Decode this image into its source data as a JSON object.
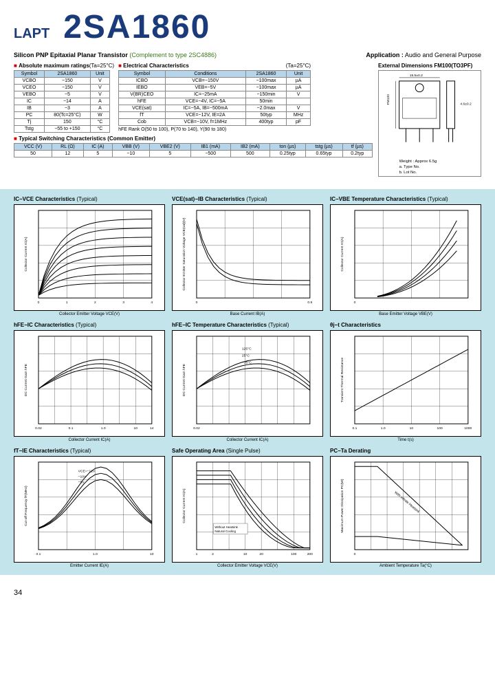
{
  "header": {
    "lapt": "LAPT",
    "part_number": "2SA1860"
  },
  "subtitle": {
    "main": "Silicon PNP Epitaxial Planar Transistor",
    "complement": "(Complement to type 2SC4886)",
    "app_label": "Application :",
    "app_text": "Audio and General Purpose"
  },
  "abs_ratings": {
    "title": "Absolute maximum ratings",
    "cond": "(Ta=25°C)",
    "headers": [
      "Symbol",
      "2SA1860",
      "Unit"
    ],
    "rows": [
      [
        "VCBO",
        "−150",
        "V"
      ],
      [
        "VCEO",
        "−150",
        "V"
      ],
      [
        "VEBO",
        "−5",
        "V"
      ],
      [
        "IC",
        "−14",
        "A"
      ],
      [
        "IB",
        "−3",
        "A"
      ],
      [
        "PC",
        "80(Tc=25°C)",
        "W"
      ],
      [
        "Tj",
        "150",
        "°C"
      ],
      [
        "Tstg",
        "−55 to +150",
        "°C"
      ]
    ]
  },
  "elec_char": {
    "title": "Electrical Characteristics",
    "cond": "(Ta=25°C)",
    "headers": [
      "Symbol",
      "Conditions",
      "2SA1860",
      "Unit"
    ],
    "rows": [
      [
        "ICBO",
        "VCB=−150V",
        "−100max",
        "µA"
      ],
      [
        "IEBO",
        "VEB=−5V",
        "−100max",
        "µA"
      ],
      [
        "V(BR)CEO",
        "IC=−25mA",
        "−150min",
        "V"
      ],
      [
        "hFE",
        "VCE=−4V, IC=−5A",
        "50min",
        ""
      ],
      [
        "VCE(sat)",
        "IC=−5A, IB=−500mA",
        "−2.0max",
        "V"
      ],
      [
        "fT",
        "VCE=−12V, IE=2A",
        "50typ",
        "MHz"
      ],
      [
        "Cob",
        "VCB=−10V, f=1MHz",
        "400typ",
        "pF"
      ]
    ],
    "hfe_note": "hFE Rank   O(50 to 100), P(70 to 140), Y(90 to 180)"
  },
  "switching": {
    "title": "Typical Switching Characteristics (Common Emitter)",
    "headers": [
      "VCC (V)",
      "RL (Ω)",
      "IC (A)",
      "VBB (V)",
      "VBE2 (V)",
      "IB1 (mA)",
      "IB2 (mA)",
      "ton (µs)",
      "tstg (µs)",
      "tf (µs)"
    ],
    "rows": [
      [
        "50",
        "12",
        "5",
        "−10",
        "5",
        "−500",
        "500",
        "0.25typ",
        "0.65typ",
        "0.2typ"
      ]
    ]
  },
  "dimensions": {
    "title": "External Dimensions",
    "package": "FM100(TO3PF)",
    "weight": "Weight : Approx 6.5g",
    "marking_a": "a. Type No.",
    "marking_b": "b. Lot No."
  },
  "charts": [
    {
      "title": "IC−VCE Characteristics",
      "typical": "(Typical)",
      "ylabel": "Collector Current IC(A)",
      "xlabel": "Collector Emitter Voltage VCE(V)",
      "type": "curves_family",
      "xticks": [
        "0",
        "1",
        "2",
        "3",
        "4"
      ],
      "yticks": [
        "0",
        "",
        "",
        "",
        "",
        "",
        "",
        ""
      ]
    },
    {
      "title": "VCE(sat)−IB Characteristics",
      "typical": "(Typical)",
      "ylabel": "Collector Emitter Saturation Voltage VCE(sat)(V)",
      "xlabel": "Base Current IB(A)",
      "type": "decay_curves",
      "xticks": [
        "0",
        "",
        "",
        "",
        "0.5"
      ],
      "yticks": [
        "0",
        "",
        "",
        "",
        ""
      ]
    },
    {
      "title": "IC−VBE Temperature Characteristics",
      "typical": "(Typical)",
      "ylabel": "Collector Current IC(A)",
      "xlabel": "Base Emitter Voltage VBE(V)",
      "type": "rising_family",
      "xticks": [
        "0",
        "",
        "",
        "",
        ""
      ],
      "yticks": [
        "",
        "",
        "",
        ""
      ]
    },
    {
      "title": "hFE−IC Characteristics",
      "typical": "(Typical)",
      "ylabel": "DC Current Gain hFE",
      "xlabel": "Collector Current IC(A)",
      "type": "log_hump",
      "xticks": [
        "0.02",
        "",
        "0.1",
        "",
        "1.0",
        "",
        "10",
        "14"
      ],
      "yticks": [
        "20",
        "",
        "100",
        "",
        "200"
      ]
    },
    {
      "title": "hFE−IC Temperature Characteristics",
      "typical": "(Typical)",
      "ylabel": "DC Current Gain hFE",
      "xlabel": "Collector Current IC(A)",
      "type": "log_hump_temp",
      "xticks": [
        "0.02",
        "",
        "",
        "",
        "",
        "",
        "",
        ""
      ],
      "yticks": [
        "",
        "",
        "",
        "",
        ""
      ],
      "temps": [
        "125°C",
        "25°C",
        "−35°C"
      ]
    },
    {
      "title": "θj−t Characteristics",
      "typical": "",
      "ylabel": "Transient Thermal Resistance",
      "xlabel": "Time t(s)",
      "type": "rising_log",
      "xticks": [
        "0.1",
        "1.0",
        "10",
        "100",
        "1000"
      ],
      "yticks": [
        "",
        "",
        "",
        ""
      ]
    },
    {
      "title": "fT−IE Characteristics",
      "typical": "(Typical)",
      "ylabel": "Cut-off Frequency fT(MHz)",
      "xlabel": "Emitter Current IE(A)",
      "type": "log_peaks",
      "xticks": [
        "0.1",
        "",
        "1.0",
        "",
        "10"
      ],
      "yticks": [
        "10",
        "",
        "",
        "",
        "80"
      ],
      "vce": [
        "VCE=−12V",
        "−10V",
        "−5V"
      ]
    },
    {
      "title": "Safe Operating Area",
      "typical": "(Single Pulse)",
      "ylabel": "Collector Current IC(A)",
      "xlabel": "Collector Emitter Voltage VCE(V)",
      "type": "soa",
      "xticks": [
        "1",
        "2",
        "",
        "10",
        "20",
        "",
        "100",
        "200"
      ],
      "yticks": [
        "",
        "",
        "",
        "",
        ""
      ],
      "note": "Without Heatsink\nNatural Cooling"
    },
    {
      "title": "PC−Ta Derating",
      "typical": "",
      "ylabel": "Maximum Power Dissipation PC(W)",
      "xlabel": "Ambient Temperature Ta(°C)",
      "type": "derating",
      "xticks": [
        "0",
        "",
        "",
        "",
        "",
        "",
        "",
        ""
      ],
      "yticks": [
        "0",
        "",
        "",
        "30"
      ],
      "note": "With infinite Heatsink"
    }
  ],
  "page_number": "34"
}
